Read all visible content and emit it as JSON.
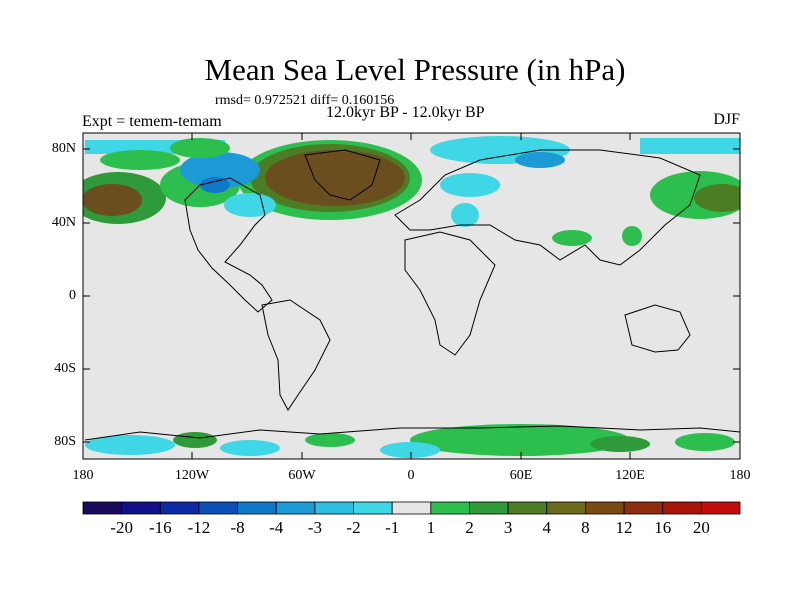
{
  "title": "Mean Sea Level Pressure (in hPa)",
  "stats_line": "rmsd= 0.972521 diff= 0.160156",
  "experiment_label": "Expt = temem-temam",
  "period_label": "12.0kyr BP - 12.0kyr BP",
  "season_label": "DJF",
  "map": {
    "background_color": "#e6e6e6",
    "lat_ticks": [
      "80N",
      "40N",
      "0",
      "40S",
      "80S"
    ],
    "lon_ticks": [
      "180",
      "120W",
      "60W",
      "0",
      "60E",
      "120E",
      "180"
    ]
  },
  "colorbar": {
    "labels": [
      "-20",
      "-16",
      "-12",
      "-8",
      "-4",
      "-3",
      "-2",
      "-1",
      "1",
      "2",
      "3",
      "4",
      "8",
      "12",
      "16",
      "20"
    ],
    "colors": [
      "#1a0a5e",
      "#120f8c",
      "#0c2aa3",
      "#0b4fb8",
      "#0f78c9",
      "#1b9ad6",
      "#2ebee0",
      "#3fd6e6",
      "#e6e6e6",
      "#2cbf4e",
      "#2f9a3a",
      "#4c7d25",
      "#6a6b1c",
      "#7a4a14",
      "#8e2e0e",
      "#a8160a",
      "#c40c0c"
    ]
  }
}
